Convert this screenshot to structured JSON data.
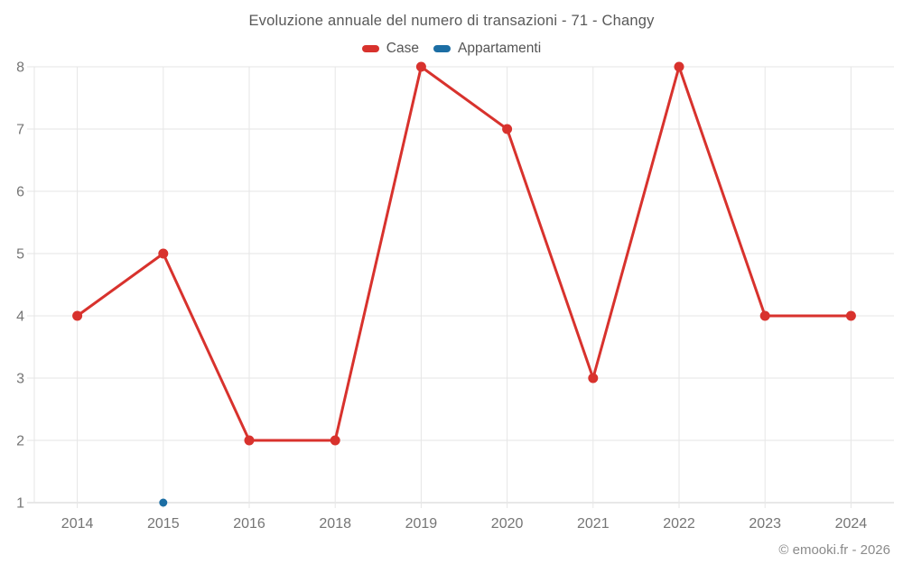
{
  "chart_data": {
    "type": "line",
    "title": "Evoluzione annuale del numero di transazioni - 71 - Changy",
    "categories": [
      "2014",
      "2015",
      "2016",
      "2018",
      "2019",
      "2020",
      "2021",
      "2022",
      "2023",
      "2024"
    ],
    "series": [
      {
        "name": "Case",
        "color": "#d8322d",
        "values": [
          4,
          5,
          2,
          2,
          8,
          7,
          3,
          8,
          4,
          4
        ]
      },
      {
        "name": "Appartamenti",
        "color": "#1c6ea4",
        "values": [
          null,
          1,
          null,
          null,
          null,
          null,
          null,
          null,
          null,
          null
        ]
      }
    ],
    "ylim": [
      1,
      8
    ],
    "yticks": [
      1,
      2,
      3,
      4,
      5,
      6,
      7,
      8
    ],
    "grid": true,
    "legend_position": "top",
    "xlabel": "",
    "ylabel": ""
  },
  "footer": {
    "credit": "© emooki.fr - 2026"
  }
}
